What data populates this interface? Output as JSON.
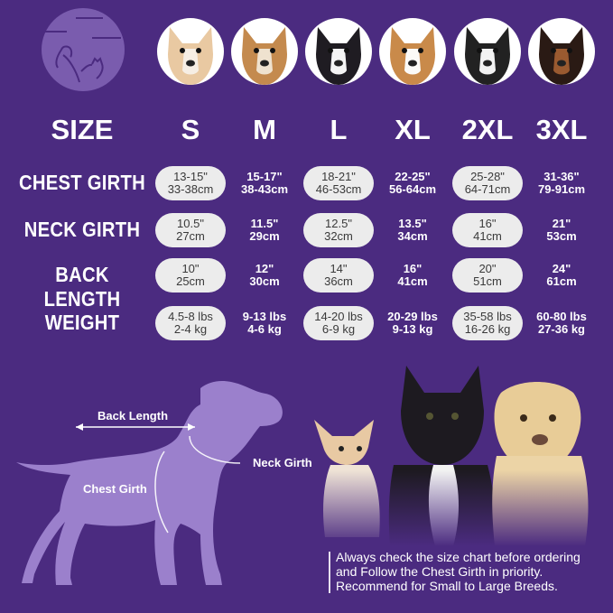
{
  "header": {
    "size_label": "SIZE"
  },
  "sizes": [
    "S",
    "M",
    "L",
    "XL",
    "2XL",
    "3XL"
  ],
  "rows": [
    {
      "label": "CHEST GIRTH",
      "values": [
        [
          "13-15\"",
          "33-38cm"
        ],
        [
          "15-17\"",
          "38-43cm"
        ],
        [
          "18-21\"",
          "46-53cm"
        ],
        [
          "22-25\"",
          "56-64cm"
        ],
        [
          "25-28\"",
          "64-71cm"
        ],
        [
          "31-36\"",
          "79-91cm"
        ]
      ]
    },
    {
      "label": "NECK GIRTH",
      "values": [
        [
          "10.5\"",
          "27cm"
        ],
        [
          "11.5\"",
          "29cm"
        ],
        [
          "12.5\"",
          "32cm"
        ],
        [
          "13.5\"",
          "34cm"
        ],
        [
          "16\"",
          "41cm"
        ],
        [
          "21\"",
          "53cm"
        ]
      ]
    },
    {
      "label": "BACK LENGTH",
      "values": [
        [
          "10\"",
          "25cm"
        ],
        [
          "12\"",
          "30cm"
        ],
        [
          "14\"",
          "36cm"
        ],
        [
          "16\"",
          "41cm"
        ],
        [
          "20\"",
          "51cm"
        ],
        [
          "24\"",
          "61cm"
        ]
      ]
    },
    {
      "label": "WEIGHT",
      "values": [
        [
          "4.5-8 lbs",
          "2-4 kg"
        ],
        [
          "9-13 lbs",
          "4-6 kg"
        ],
        [
          "14-20 lbs",
          "6-9 kg"
        ],
        [
          "20-29 lbs",
          "9-13 kg"
        ],
        [
          "35-58 lbs",
          "16-26 kg"
        ],
        [
          "60-80 lbs",
          "27-36 kg"
        ]
      ]
    }
  ],
  "diagram": {
    "back_length": "Back Length",
    "neck_girth": "Neck Girth",
    "chest_girth": "Chest Girth"
  },
  "note": {
    "line1": "Always check the size chart before ordering",
    "line2": "and Follow the Chest Girth in priority.",
    "line3": "Recommend for Small to Large Breeds."
  },
  "colors": {
    "background": "#4b2b80",
    "pill": "#ececec",
    "silhouette": "#9b80cc"
  },
  "icons": {
    "logo": "dog-cat-logo-icon"
  }
}
